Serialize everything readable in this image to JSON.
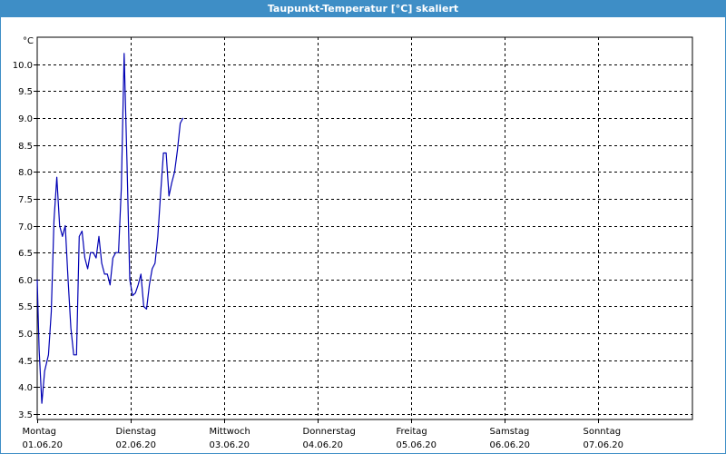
{
  "window": {
    "title": "Taupunkt-Temperatur [°C] skaliert"
  },
  "colors": {
    "titlebar": "#3e8ec6",
    "series": "#0000b4",
    "grid": "#000000"
  },
  "chart_data": {
    "type": "line",
    "title": "Taupunkt-Temperatur [°C] skaliert",
    "ylabel": "°C",
    "ylim": [
      3.4,
      10.5
    ],
    "xlim": [
      0,
      7
    ],
    "grid": true,
    "yticks": [
      "3.5",
      "4.0",
      "4.5",
      "5.0",
      "5.5",
      "6.0",
      "6.5",
      "7.0",
      "7.5",
      "8.0",
      "8.5",
      "9.0",
      "9.5",
      "10.0"
    ],
    "xticks": [
      {
        "day": "Montag",
        "date": "01.06.20"
      },
      {
        "day": "Dienstag",
        "date": "02.06.20"
      },
      {
        "day": "Mittwoch",
        "date": "03.06.20"
      },
      {
        "day": "Donnerstag",
        "date": "04.06.20"
      },
      {
        "day": "Freitag",
        "date": "05.06.20"
      },
      {
        "day": "Samstag",
        "date": "06.06.20"
      },
      {
        "day": "Sonntag",
        "date": "07.06.20"
      }
    ],
    "series": [
      {
        "x": [
          0.0,
          0.02,
          0.05,
          0.08,
          0.12,
          0.15,
          0.18,
          0.21,
          0.24,
          0.27,
          0.3,
          0.33,
          0.36,
          0.39,
          0.42,
          0.45,
          0.48,
          0.51,
          0.54,
          0.57,
          0.6,
          0.63,
          0.66,
          0.69,
          0.72,
          0.75,
          0.78,
          0.81,
          0.84,
          0.87,
          0.9,
          0.93,
          0.96,
          0.99,
          1.02,
          1.05,
          1.08,
          1.11,
          1.14,
          1.17,
          1.2,
          1.23,
          1.26,
          1.29,
          1.32,
          1.35,
          1.38,
          1.41,
          1.44,
          1.47,
          1.5,
          1.53,
          1.56,
          1.59,
          1.62,
          1.65,
          1.68,
          1.71,
          1.74,
          1.77,
          1.8,
          1.83,
          1.86,
          1.89,
          1.92,
          1.95,
          1.98,
          2.01,
          2.04,
          2.07,
          2.1,
          2.13,
          2.16,
          2.19,
          2.22
        ],
        "values": [
          6.0,
          4.7,
          3.7,
          4.3,
          4.6,
          5.4,
          7.1,
          7.9,
          7.0,
          6.8,
          7.0,
          6.0,
          5.1,
          4.6,
          4.6,
          6.8,
          6.9,
          6.4,
          6.2,
          6.5,
          6.5,
          6.4,
          6.8,
          6.3,
          6.1,
          6.1,
          5.9,
          6.4,
          6.5,
          6.5,
          7.7,
          10.2,
          8.2,
          6.0,
          5.7,
          5.75,
          5.9,
          6.1,
          5.5,
          5.45,
          5.9,
          6.2,
          6.3,
          6.8,
          7.6,
          8.35,
          8.35,
          7.55,
          7.8,
          8.0,
          8.4,
          8.9,
          9.0,
          9.0,
          9.0,
          9.0,
          9.0,
          9.0,
          9.0,
          9.0,
          9.0,
          9.0,
          9.0,
          9.0,
          9.0,
          9.0,
          9.0,
          9.0,
          9.0,
          9.0,
          9.0,
          9.0,
          9.0,
          9.0,
          9.0
        ]
      }
    ]
  }
}
